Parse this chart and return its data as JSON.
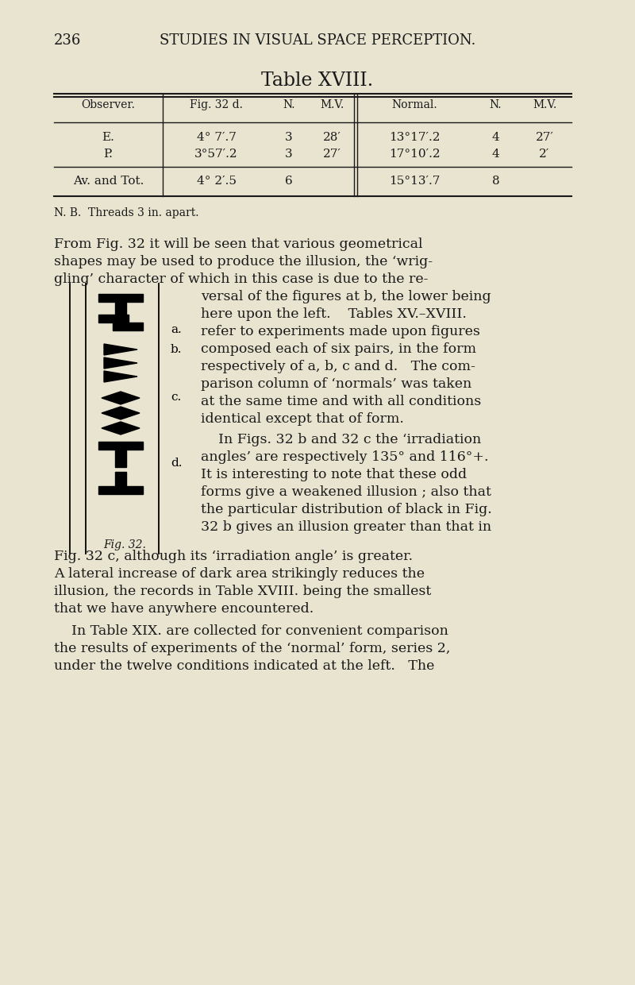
{
  "page_number": "236",
  "header": "STUDIES IN VISUAL SPACE PERCEPTION.",
  "table_title": "Table XVIII.",
  "bg_color": "#e8e4d0",
  "text_color": "#1a1a1a",
  "col_headers": [
    "Observer.",
    "Fig. 32 d.",
    "N.",
    "M.V.",
    "Normal.",
    "N.",
    "M.V."
  ],
  "row_E": [
    "E.",
    "4° 7′.7",
    "3",
    "28′",
    "13°17′.2",
    "4",
    "27′"
  ],
  "row_P": [
    "P.",
    "3°57′.2",
    "3",
    "27′",
    "17°10′.2",
    "4",
    "2′"
  ],
  "row_av": [
    "Av. and Tot.",
    "4° 2′.5",
    "6",
    "",
    "15°13′.7",
    "8",
    ""
  ],
  "nb_text": "N. B.  Threads 3 in. apart.",
  "p1_full": [
    "From Fig. 32 it will be seen that various geometrical",
    "shapes may be used to produce the illusion, the ‘wrig-",
    "gling’ character of which in this case is due to the re-"
  ],
  "p1_indent": [
    "versal of the figures at b, the lower being",
    "here upon the left.    Tables XV.–XVIII.",
    "refer to experiments made upon figures",
    "composed each of six pairs, in the form",
    "respectively of a, b, c and d.   The com-",
    "parison column of ‘normals’ was taken",
    "at the same time and with all conditions",
    "identical except that of form."
  ],
  "p2_indent": [
    "    In Figs. 32 b and 32 c the ‘irradiation",
    "angles’ are respectively 135° and 116°+.",
    "It is interesting to note that these odd",
    "forms give a weakened illusion ; also that",
    "the particular distribution of black in Fig.",
    "32 b gives an illusion greater than that in"
  ],
  "p2_full": [
    "Fig. 32 c, although its ‘irradiation angle’ is greater.",
    "A lateral increase of dark area strikingly reduces the",
    "illusion, the records in Table XVIII. being the smallest",
    "that we have anywhere encountered."
  ],
  "p3_full": [
    "    In Table XIX. are collected for convenient comparison",
    "the results of experiments of the ‘normal’ form, series 2,",
    "under the twelve conditions indicated at the left.   The"
  ],
  "fig_label": "Fig. 32.",
  "fig_labels": [
    "a.",
    "b.",
    "c.",
    "d."
  ]
}
